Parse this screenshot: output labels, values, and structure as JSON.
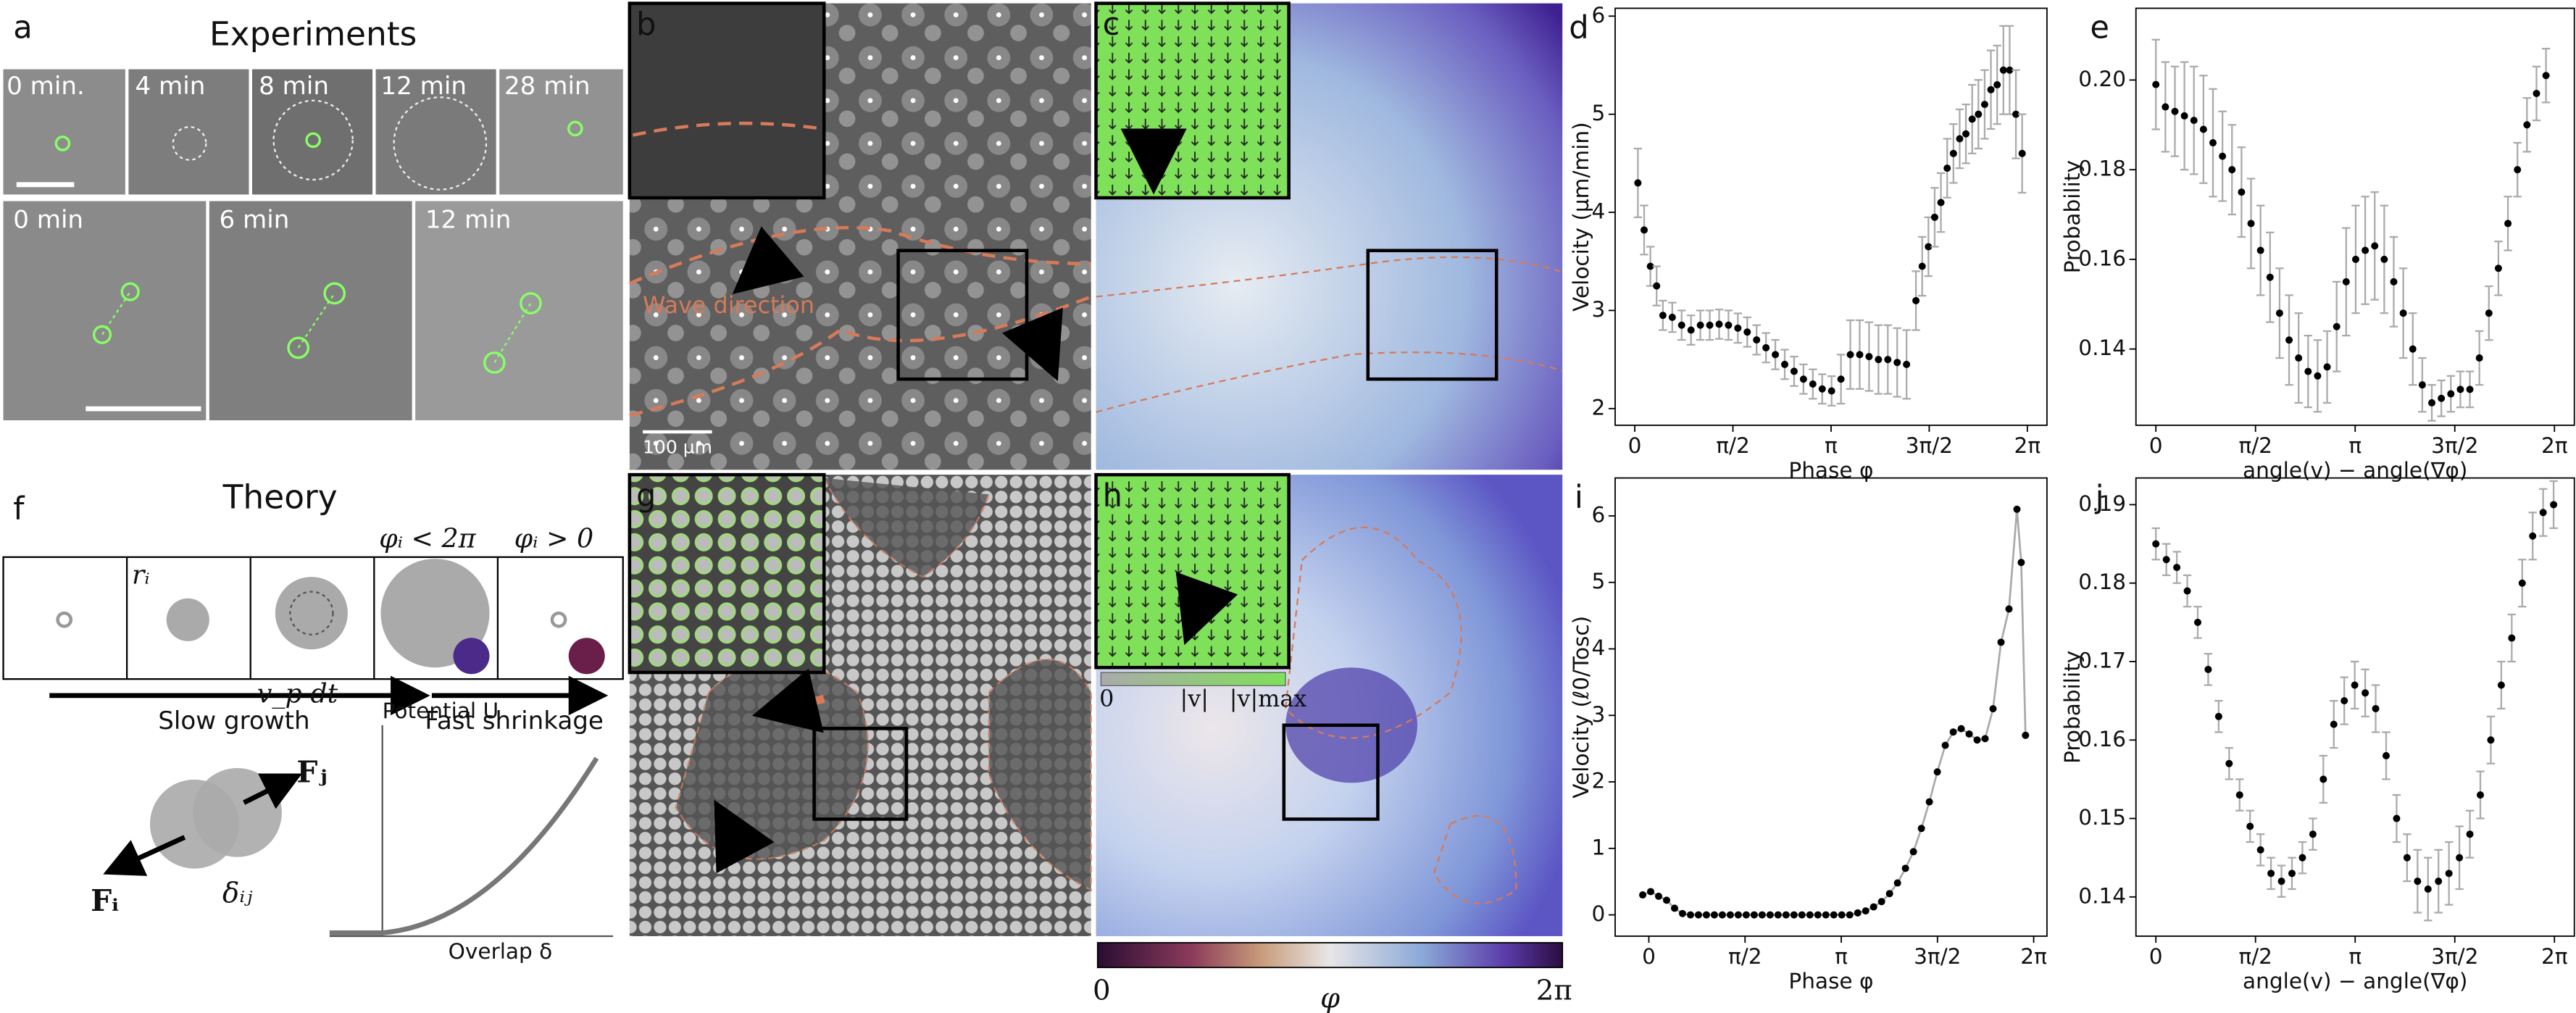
{
  "panel_labels": {
    "a": "a",
    "b": "b",
    "c": "c",
    "f": "f",
    "g": "g",
    "h": "h"
  },
  "experiments": {
    "title": "Experiments",
    "times_top": [
      "0 min.",
      "4 min",
      "8 min",
      "12 min",
      "28 min"
    ],
    "times_bottom": [
      "0 min",
      "6 min",
      "12 min"
    ]
  },
  "theory": {
    "title": "Theory",
    "radius": "rᵢ",
    "step": "v_p dt",
    "phase_high": "φᵢ < 2π",
    "phase_low": "φᵢ > 0",
    "slow": "Slow growth",
    "fast": "Fast shrinkage",
    "force_j": "Fⱼ",
    "force_i": "Fᵢ",
    "overlap_ij": "δᵢⱼ",
    "potential": "Potential U",
    "overlap": "Overlap δ"
  },
  "panel_b": {
    "annotation": "Wave direction",
    "scale_bar": "100 µm"
  },
  "speed_bar": {
    "min": "0",
    "mid": "|v|",
    "max": "|v|max"
  },
  "colorbar": {
    "min": "0",
    "max": "2π",
    "label": "φ"
  },
  "chart_data": [
    {
      "type": "scatter",
      "panel": "d",
      "xlabel": "Phase φ",
      "ylabel": "Velocity (µm/min)",
      "xlim": [
        -0.314,
        6.597
      ],
      "ylim": [
        1.83,
        6.08
      ],
      "xticks": [
        0,
        {
          "value": 1.5708,
          "label": "π/2"
        },
        {
          "value": 3.1416,
          "label": "π"
        },
        {
          "value": 4.7124,
          "label": "3π/2"
        },
        {
          "value": 6.2832,
          "label": "2π"
        }
      ],
      "yticks": [
        2,
        3,
        4,
        5,
        6
      ],
      "color": "#000000",
      "error_color": "#aaaaaa",
      "x": [
        0.05,
        0.15,
        0.25,
        0.35,
        0.45,
        0.6,
        0.75,
        0.9,
        1.05,
        1.2,
        1.35,
        1.5,
        1.65,
        1.8,
        1.95,
        2.1,
        2.25,
        2.4,
        2.55,
        2.7,
        2.85,
        3.0,
        3.15,
        3.3,
        3.45,
        3.6,
        3.75,
        3.9,
        4.05,
        4.2,
        4.35,
        4.5,
        4.6,
        4.7,
        4.8,
        4.9,
        5.0,
        5.1,
        5.2,
        5.3,
        5.4,
        5.5,
        5.6,
        5.7,
        5.8,
        5.9,
        6.0,
        6.1,
        6.2
      ],
      "values": [
        4.3,
        3.82,
        3.45,
        3.25,
        2.95,
        2.93,
        2.85,
        2.8,
        2.85,
        2.85,
        2.86,
        2.85,
        2.82,
        2.78,
        2.7,
        2.62,
        2.55,
        2.45,
        2.38,
        2.3,
        2.25,
        2.2,
        2.18,
        2.3,
        2.55,
        2.55,
        2.53,
        2.5,
        2.5,
        2.47,
        2.45,
        3.1,
        3.45,
        3.65,
        3.95,
        4.1,
        4.45,
        4.6,
        4.75,
        4.8,
        4.95,
        5.0,
        5.1,
        5.25,
        5.3,
        5.45,
        5.45,
        5.0,
        4.6
      ],
      "errors": [
        0.35,
        0.25,
        0.2,
        0.2,
        0.15,
        0.15,
        0.15,
        0.15,
        0.15,
        0.15,
        0.15,
        0.15,
        0.15,
        0.15,
        0.15,
        0.15,
        0.15,
        0.15,
        0.15,
        0.15,
        0.15,
        0.15,
        0.15,
        0.25,
        0.35,
        0.35,
        0.35,
        0.35,
        0.35,
        0.35,
        0.35,
        0.3,
        0.3,
        0.3,
        0.3,
        0.3,
        0.3,
        0.3,
        0.3,
        0.3,
        0.35,
        0.35,
        0.35,
        0.4,
        0.4,
        0.45,
        0.45,
        0.45,
        0.4
      ]
    },
    {
      "type": "scatter",
      "panel": "e",
      "xlabel": "angle(v) − angle(∇φ)",
      "ylabel": "Probability",
      "xlim": [
        -0.314,
        6.597
      ],
      "ylim": [
        0.123,
        0.216
      ],
      "xticks": [
        0,
        {
          "value": 1.5708,
          "label": "π/2"
        },
        {
          "value": 3.1416,
          "label": "π"
        },
        {
          "value": 4.7124,
          "label": "3π/2"
        },
        {
          "value": 6.2832,
          "label": "2π"
        }
      ],
      "yticks": [
        {
          "value": 0.14,
          "label": "0.14"
        },
        {
          "value": 0.16,
          "label": "0.16"
        },
        {
          "value": 0.18,
          "label": "0.18"
        },
        {
          "value": 0.2,
          "label": "0.20"
        }
      ],
      "color": "#000000",
      "error_color": "#aaaaaa",
      "x": [
        0,
        0.15,
        0.3,
        0.45,
        0.6,
        0.75,
        0.9,
        1.05,
        1.2,
        1.35,
        1.5,
        1.65,
        1.8,
        1.95,
        2.1,
        2.25,
        2.4,
        2.55,
        2.7,
        2.85,
        3.0,
        3.15,
        3.3,
        3.45,
        3.6,
        3.75,
        3.9,
        4.05,
        4.2,
        4.35,
        4.5,
        4.65,
        4.8,
        4.95,
        5.1,
        5.25,
        5.4,
        5.55,
        5.7,
        5.85,
        6.0,
        6.15
      ],
      "values": [
        0.199,
        0.194,
        0.193,
        0.192,
        0.191,
        0.189,
        0.186,
        0.183,
        0.18,
        0.175,
        0.168,
        0.162,
        0.156,
        0.148,
        0.142,
        0.138,
        0.135,
        0.134,
        0.136,
        0.145,
        0.155,
        0.16,
        0.162,
        0.163,
        0.16,
        0.155,
        0.148,
        0.14,
        0.132,
        0.128,
        0.129,
        0.13,
        0.131,
        0.131,
        0.138,
        0.148,
        0.158,
        0.168,
        0.18,
        0.19,
        0.197,
        0.201
      ],
      "errors": [
        0.01,
        0.01,
        0.01,
        0.012,
        0.012,
        0.012,
        0.012,
        0.01,
        0.01,
        0.01,
        0.01,
        0.01,
        0.01,
        0.01,
        0.01,
        0.01,
        0.008,
        0.008,
        0.008,
        0.01,
        0.012,
        0.012,
        0.012,
        0.012,
        0.012,
        0.01,
        0.01,
        0.008,
        0.006,
        0.004,
        0.004,
        0.004,
        0.004,
        0.004,
        0.006,
        0.006,
        0.006,
        0.006,
        0.006,
        0.006,
        0.006,
        0.006
      ]
    },
    {
      "type": "line",
      "panel": "i",
      "xlabel": "Phase φ",
      "ylabel": "Velocity (ℓ0/Tosc)",
      "xlim": [
        -0.55,
        6.5
      ],
      "ylim": [
        -0.32,
        6.57
      ],
      "xticks": [
        0,
        {
          "value": 1.5708,
          "label": "π/2"
        },
        {
          "value": 3.1416,
          "label": "π"
        },
        {
          "value": 4.7124,
          "label": "3π/2"
        },
        {
          "value": 6.2832,
          "label": "2π"
        }
      ],
      "yticks": [
        0,
        1,
        2,
        3,
        4,
        5,
        6
      ],
      "color": "#000000",
      "line_color": "#aaaaaa",
      "x": [
        -0.1,
        0.03,
        0.16,
        0.29,
        0.42,
        0.55,
        0.68,
        0.81,
        0.94,
        1.07,
        1.2,
        1.33,
        1.46,
        1.59,
        1.72,
        1.85,
        1.98,
        2.11,
        2.24,
        2.37,
        2.5,
        2.63,
        2.76,
        2.89,
        3.02,
        3.15,
        3.28,
        3.41,
        3.54,
        3.67,
        3.8,
        3.93,
        4.06,
        4.19,
        4.32,
        4.45,
        4.58,
        4.71,
        4.84,
        4.97,
        5.1,
        5.23,
        5.36,
        5.49,
        5.62,
        5.75,
        5.88,
        6.01,
        6.08,
        6.15
      ],
      "values": [
        0.3,
        0.35,
        0.28,
        0.22,
        0.1,
        0.02,
        0,
        0,
        0,
        0,
        0,
        0,
        0,
        0,
        0,
        0,
        0,
        0,
        0,
        0,
        0,
        0,
        0,
        0,
        0,
        0,
        0,
        0.03,
        0.06,
        0.12,
        0.2,
        0.32,
        0.48,
        0.7,
        0.95,
        1.3,
        1.7,
        2.15,
        2.55,
        2.75,
        2.8,
        2.72,
        2.63,
        2.65,
        3.1,
        4.1,
        4.6,
        6.1,
        5.3,
        2.7
      ]
    },
    {
      "type": "scatter",
      "panel": "j",
      "xlabel": "angle(v) − angle(∇φ)",
      "ylabel": "Probability",
      "xlim": [
        -0.314,
        6.597
      ],
      "ylim": [
        0.135,
        0.1934
      ],
      "xticks": [
        0,
        {
          "value": 1.5708,
          "label": "π/2"
        },
        {
          "value": 3.1416,
          "label": "π"
        },
        {
          "value": 4.7124,
          "label": "3π/2"
        },
        {
          "value": 6.2832,
          "label": "2π"
        }
      ],
      "yticks": [
        0.14,
        0.15,
        0.16,
        0.17,
        0.18,
        0.19
      ],
      "color": "#000000",
      "error_color": "#aaaaaa",
      "x": [
        0,
        0.165,
        0.33,
        0.495,
        0.66,
        0.825,
        0.99,
        1.155,
        1.32,
        1.485,
        1.65,
        1.815,
        1.98,
        2.145,
        2.31,
        2.475,
        2.64,
        2.805,
        2.97,
        3.135,
        3.3,
        3.465,
        3.63,
        3.795,
        3.96,
        4.125,
        4.29,
        4.455,
        4.62,
        4.785,
        4.95,
        5.115,
        5.28,
        5.445,
        5.61,
        5.775,
        5.94,
        6.105,
        6.27
      ],
      "values": [
        0.185,
        0.183,
        0.182,
        0.179,
        0.175,
        0.169,
        0.163,
        0.157,
        0.153,
        0.149,
        0.146,
        0.143,
        0.142,
        0.143,
        0.145,
        0.148,
        0.155,
        0.162,
        0.165,
        0.167,
        0.166,
        0.164,
        0.158,
        0.15,
        0.145,
        0.142,
        0.141,
        0.142,
        0.143,
        0.145,
        0.148,
        0.153,
        0.16,
        0.167,
        0.173,
        0.18,
        0.186,
        0.189,
        0.19
      ],
      "errors": [
        0.002,
        0.002,
        0.002,
        0.002,
        0.002,
        0.002,
        0.002,
        0.002,
        0.002,
        0.002,
        0.002,
        0.002,
        0.002,
        0.002,
        0.002,
        0.002,
        0.003,
        0.003,
        0.003,
        0.003,
        0.003,
        0.003,
        0.003,
        0.003,
        0.003,
        0.004,
        0.004,
        0.004,
        0.004,
        0.004,
        0.003,
        0.003,
        0.003,
        0.003,
        0.003,
        0.003,
        0.003,
        0.003,
        0.003
      ]
    }
  ]
}
